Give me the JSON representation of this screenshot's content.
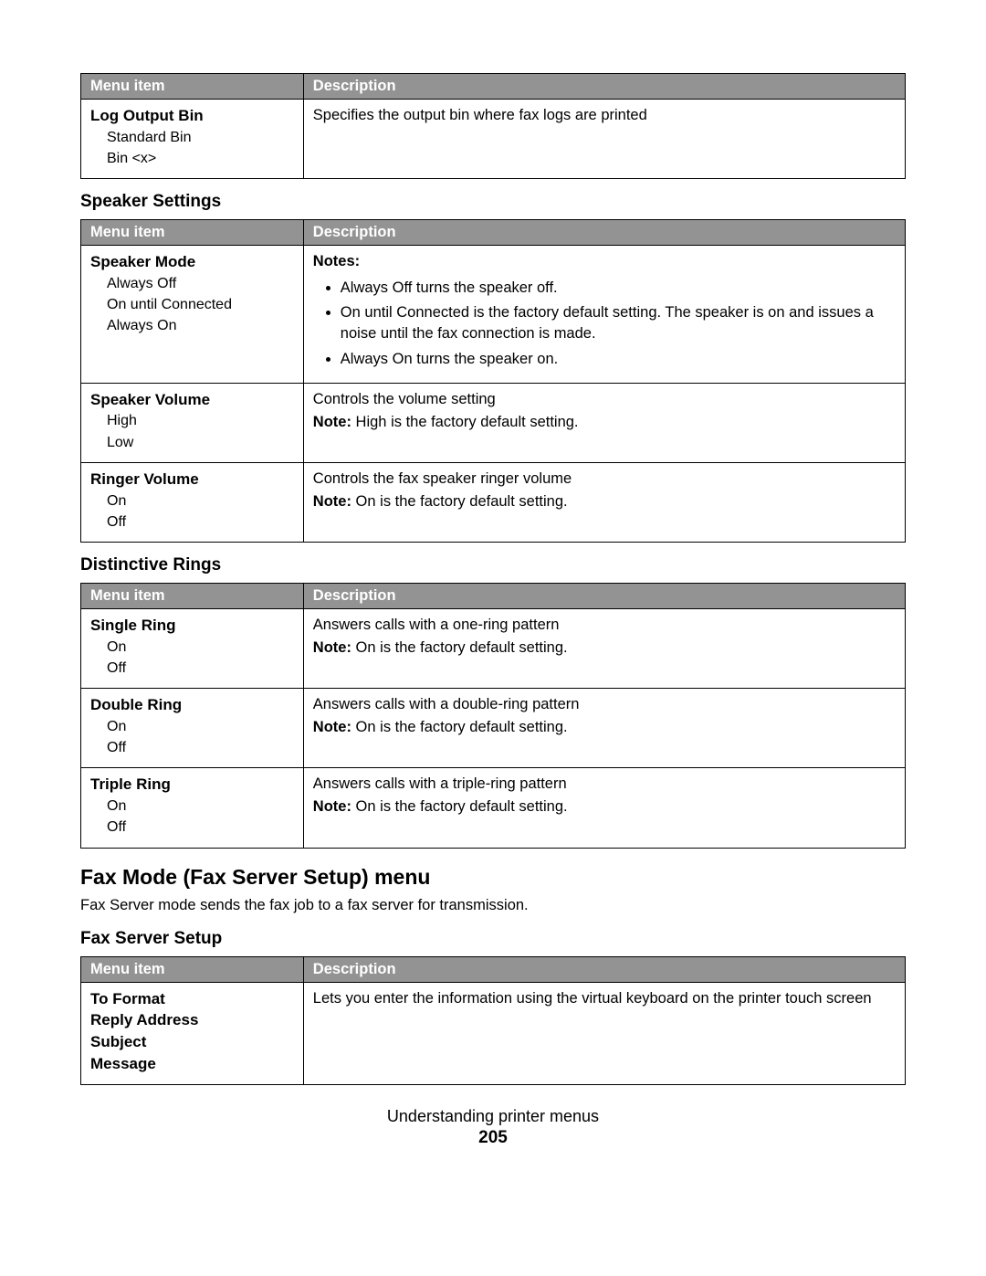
{
  "headers": {
    "menu_item": "Menu item",
    "description": "Description"
  },
  "table1": {
    "row1": {
      "title": "Log Output Bin",
      "opt1": "Standard Bin",
      "opt2": "Bin <x>",
      "desc": "Specifies the output bin where fax logs are printed"
    }
  },
  "section_speaker": "Speaker Settings",
  "speaker": {
    "mode": {
      "title": "Speaker Mode",
      "opt1": "Always Off",
      "opt2": "On until Connected",
      "opt3": "Always On",
      "notes_label": "Notes:",
      "n1": "Always Off turns the speaker off.",
      "n2": "On until Connected is the factory default setting. The speaker is on and issues a noise until the fax connection is made.",
      "n3": "Always On turns the speaker on."
    },
    "volume": {
      "title": "Speaker Volume",
      "opt1": "High",
      "opt2": "Low",
      "desc": "Controls the volume setting",
      "note_label": "Note:",
      "note": " High is the factory default setting."
    },
    "ringer": {
      "title": "Ringer Volume",
      "opt1": "On",
      "opt2": "Off",
      "desc": "Controls the fax speaker ringer volume",
      "note_label": "Note:",
      "note": " On is the factory default setting."
    }
  },
  "section_rings": "Distinctive Rings",
  "rings": {
    "single": {
      "title": "Single Ring",
      "opt1": "On",
      "opt2": "Off",
      "desc": "Answers calls with a one-ring pattern",
      "note_label": "Note:",
      "note": " On is the factory default setting."
    },
    "double": {
      "title": "Double Ring",
      "opt1": "On",
      "opt2": "Off",
      "desc": "Answers calls with a double-ring pattern",
      "note_label": "Note:",
      "note": " On is the factory default setting."
    },
    "triple": {
      "title": "Triple Ring",
      "opt1": "On",
      "opt2": "Off",
      "desc": "Answers calls with a triple-ring pattern",
      "note_label": "Note:",
      "note": " On is the factory default setting."
    }
  },
  "major_heading": "Fax Mode (Fax Server Setup) menu",
  "major_body": "Fax Server mode sends the fax job to a fax server for transmission.",
  "section_faxserver": "Fax Server Setup",
  "faxserver": {
    "row1": {
      "t1": "To Format",
      "t2": "Reply Address",
      "t3": "Subject",
      "t4": "Message",
      "desc": "Lets you enter the information using the virtual keyboard on the printer touch screen"
    }
  },
  "footer": {
    "chapter": "Understanding printer menus",
    "page": "205"
  },
  "style": {
    "header_bg": "#939393",
    "header_fg": "#ffffff",
    "border_color": "#000000",
    "body_font_size_pt": 12,
    "col_menu_width_pct": 27
  }
}
